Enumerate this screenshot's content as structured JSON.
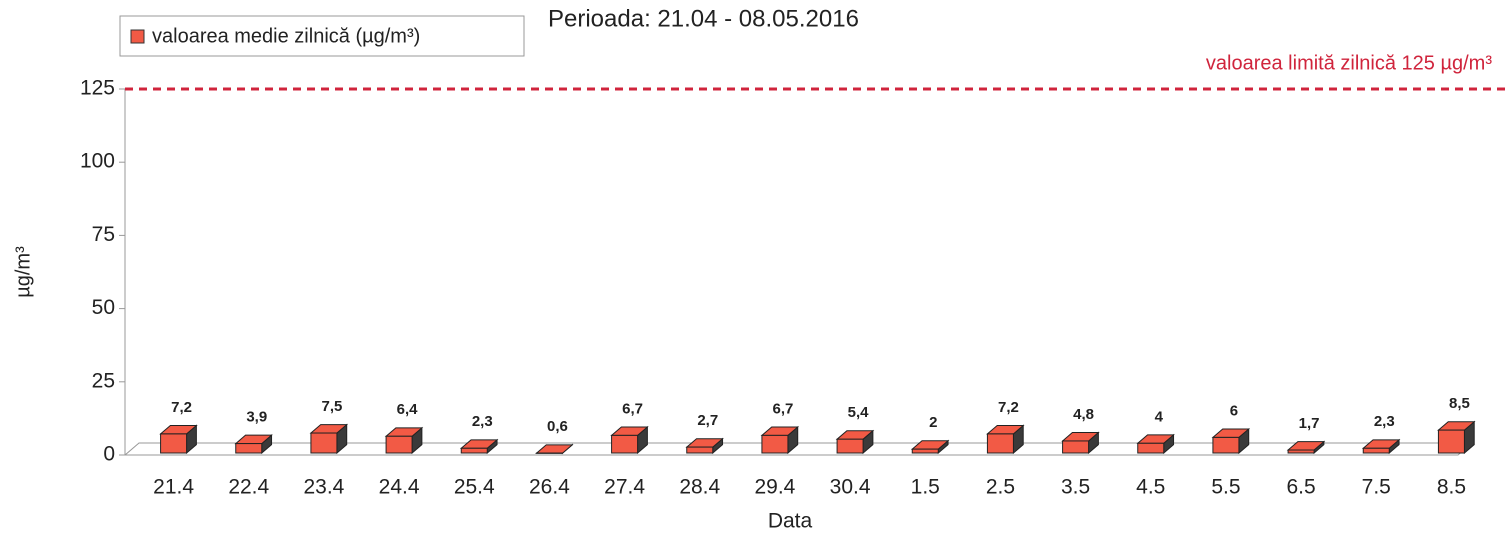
{
  "chart_data": {
    "type": "bar3d",
    "title": "Perioada: 21.04 - 08.05.2016",
    "legend": "valoarea medie zilnică (µg/m³)",
    "limit": 125,
    "limit_label": "valoarea limită zilnică 125 µg/m³",
    "limit_color": "#d0243c",
    "y_label": "µg/m³",
    "x_label": "Data",
    "categories": [
      "21.4",
      "22.4",
      "23.4",
      "24.4",
      "25.4",
      "26.4",
      "27.4",
      "28.4",
      "29.4",
      "30.4",
      "1.5",
      "2.5",
      "3.5",
      "4.5",
      "5.5",
      "6.5",
      "7.5",
      "8.5"
    ],
    "values": [
      7.2,
      3.9,
      7.5,
      6.4,
      2.3,
      0.6,
      6.7,
      2.7,
      6.7,
      5.4,
      2,
      7.2,
      4.8,
      4,
      6,
      1.7,
      2.3,
      8.5
    ],
    "value_labels": [
      "7,2",
      "3,9",
      "7,5",
      "6,4",
      "2,3",
      "0,6",
      "6,7",
      "2,7",
      "6,7",
      "5,4",
      "2",
      "7,2",
      "4,8",
      "4",
      "6",
      "1,7",
      "2,3",
      "8,5"
    ],
    "color": "#f25a45",
    "ylim": [
      0,
      125
    ],
    "yticks": [
      0,
      25,
      50,
      75,
      100,
      125
    ]
  }
}
